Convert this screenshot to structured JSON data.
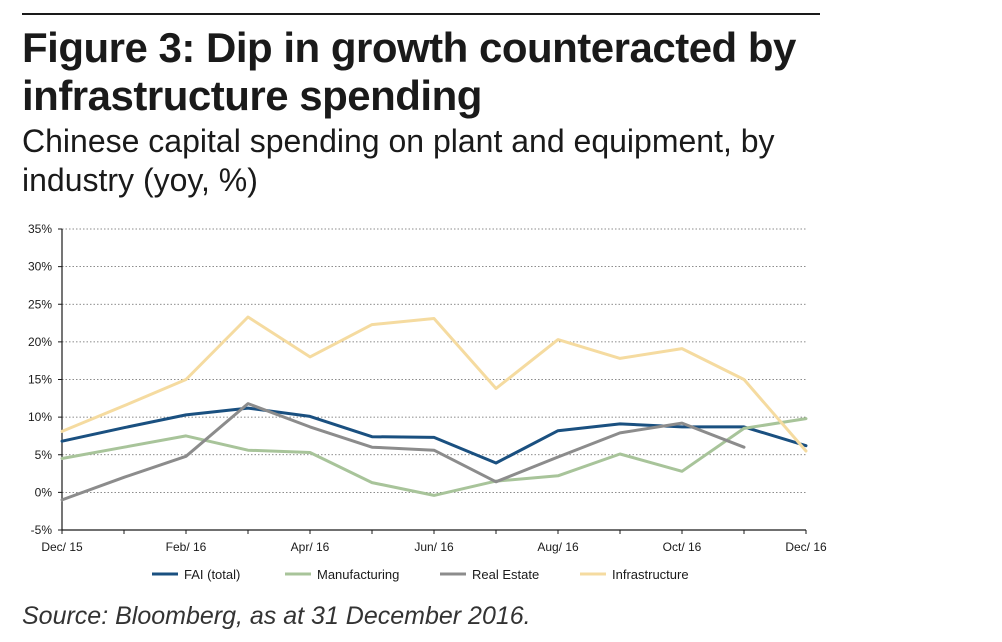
{
  "header": {
    "title": "Figure 3: Dip in growth counteracted by infrastructure spending",
    "subtitle": "Chinese capital spending on plant and equipment, by industry (yoy, %)"
  },
  "footer": {
    "source": "Source: Bloomberg, as at 31 December 2016."
  },
  "chart_data": {
    "type": "line",
    "title": "",
    "xlabel": "",
    "ylabel": "",
    "x_tick_labels": [
      "Dec/ 15",
      "Feb/ 16",
      "Apr/ 16",
      "Jun/ 16",
      "Aug/ 16",
      "Oct/ 16",
      "Dec/ 16"
    ],
    "y_tick_labels": [
      "35%",
      "30%",
      "25%",
      "20%",
      "15%",
      "10%",
      "5%",
      "0%",
      "-5%"
    ],
    "ylim": [
      -5,
      35
    ],
    "y_ticks": [
      35,
      30,
      25,
      20,
      15,
      10,
      5,
      0,
      -5
    ],
    "grid": "horizontal dotted",
    "legend_position": "bottom",
    "x": [
      "Dec 2015",
      "Jan 2016",
      "Feb 2016",
      "Mar 2016",
      "Apr 2016",
      "May 2016",
      "Jun 2016",
      "Jul 2016",
      "Aug 2016",
      "Sep 2016",
      "Oct 2016",
      "Nov 2016",
      "Dec 2016"
    ],
    "series": [
      {
        "name": "FAI (total)",
        "color": "#1a5080",
        "values": [
          6.8,
          8.6,
          10.3,
          11.2,
          10.1,
          7.4,
          7.3,
          3.9,
          8.2,
          9.1,
          8.7,
          8.7,
          6.2
        ]
      },
      {
        "name": "Manufacturing",
        "color": "#a8c49a",
        "values": [
          4.5,
          6.0,
          7.5,
          5.6,
          5.3,
          1.3,
          -0.4,
          1.5,
          2.2,
          5.1,
          2.8,
          8.5,
          9.8
        ]
      },
      {
        "name": "Real Estate",
        "color": "#8c8c8c",
        "values": [
          -1.0,
          2.0,
          4.8,
          11.8,
          8.7,
          6.0,
          5.6,
          1.4,
          4.7,
          7.9,
          9.2,
          6.0,
          null
        ]
      },
      {
        "name": "Infrastructure",
        "color": "#f5dba0",
        "values": [
          8.1,
          11.5,
          15.0,
          23.3,
          18.0,
          22.3,
          23.1,
          13.8,
          20.3,
          17.8,
          19.1,
          15.0,
          5.5
        ]
      }
    ]
  }
}
